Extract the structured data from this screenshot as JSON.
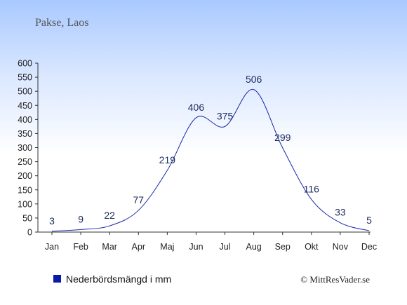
{
  "chart_data": {
    "type": "line",
    "title": "Pakse, Laos",
    "categories": [
      "Jan",
      "Feb",
      "Mar",
      "Apr",
      "Maj",
      "Jun",
      "Jul",
      "Aug",
      "Sep",
      "Okt",
      "Nov",
      "Dec"
    ],
    "series": [
      {
        "name": "Nederbördsmängd i mm",
        "values": [
          3,
          9,
          22,
          77,
          219,
          406,
          375,
          506,
          299,
          116,
          33,
          5
        ]
      }
    ],
    "ylim": [
      0,
      600
    ],
    "yticks": [
      0,
      50,
      100,
      150,
      200,
      250,
      300,
      350,
      400,
      450,
      500,
      550,
      600
    ],
    "grid": false,
    "legend": "bottom-left",
    "line_color": "#1a2aaa",
    "legend_marker_color": "#0a1aa8"
  },
  "credit": "© MittResVader.se"
}
